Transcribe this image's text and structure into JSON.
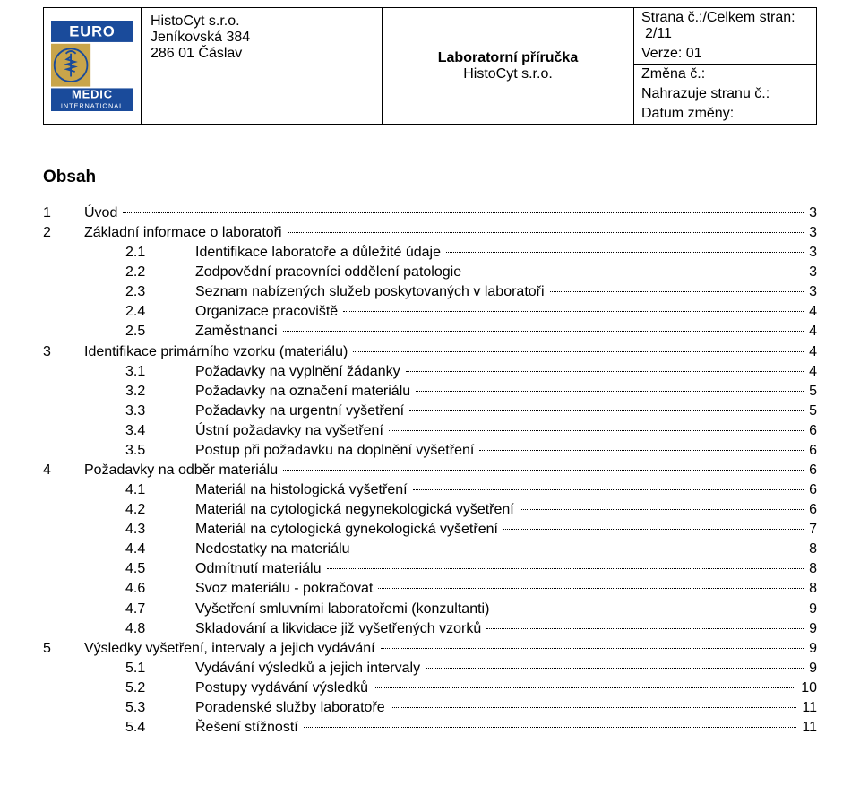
{
  "header": {
    "logo": {
      "top": "EURO",
      "bottom_line1": "MEDIC",
      "bottom_line2": "INTERNATIONAL",
      "blue": "#1a4b9b",
      "gold": "#c9a54a"
    },
    "company": {
      "name": "HistoCyt s.r.o.",
      "addr1": "Jeníkovská 384",
      "addr2": "286 01 Čáslav"
    },
    "title": {
      "line1": "Laboratorní příručka",
      "line2": "HistoCyt s.r.o."
    },
    "meta": {
      "page_label": "Strana č.:/Celkem stran:",
      "page_value": "2/11",
      "version": "Verze: 01",
      "change": "Změna č.:",
      "replaces": "Nahrazuje stranu č.:",
      "date": "Datum změny:"
    }
  },
  "obsah": "Obsah",
  "toc": [
    {
      "lvl": 1,
      "num": "1",
      "txt": "Úvod",
      "pg": "3"
    },
    {
      "lvl": 1,
      "num": "2",
      "txt": "Základní informace o laboratoři",
      "pg": "3"
    },
    {
      "lvl": 2,
      "num": "2.1",
      "txt": "Identifikace laboratoře a důležité údaje",
      "pg": "3",
      "sp": true
    },
    {
      "lvl": 2,
      "num": "2.2",
      "txt": "Zodpovědní pracovníci oddělení patologie",
      "pg": "3",
      "sp": true
    },
    {
      "lvl": 2,
      "num": "2.3",
      "txt": "Seznam nabízených služeb poskytovaných v laboratoři",
      "pg": "3",
      "sp": true
    },
    {
      "lvl": 2,
      "num": "2.4",
      "txt": "Organizace pracoviště",
      "pg": "4",
      "sp": true
    },
    {
      "lvl": 2,
      "num": "2.5",
      "txt": "Zaměstnanci",
      "pg": "4",
      "sp": true
    },
    {
      "lvl": 1,
      "num": "3",
      "txt": "Identifikace primárního vzorku (materiálu)",
      "pg": "4"
    },
    {
      "lvl": 2,
      "num": "3.1",
      "txt": "Požadavky na vyplnění žádanky",
      "pg": "4",
      "sp": true
    },
    {
      "lvl": 2,
      "num": "3.2",
      "txt": "Požadavky na označení materiálu",
      "pg": "5",
      "sp": true
    },
    {
      "lvl": 2,
      "num": "3.3",
      "txt": "Požadavky na urgentní vyšetření",
      "pg": "5",
      "sp": true
    },
    {
      "lvl": 2,
      "num": "3.4",
      "txt": "Ústní požadavky na vyšetření",
      "pg": "6",
      "sp": true
    },
    {
      "lvl": 2,
      "num": "3.5",
      "txt": "Postup při požadavku na doplnění vyšetření",
      "pg": "6",
      "sp": true
    },
    {
      "lvl": 1,
      "num": "4",
      "txt": "Požadavky na odběr materiálu",
      "pg": "6"
    },
    {
      "lvl": 2,
      "num": "4.1",
      "txt": "Materiál na histologická vyšetření",
      "pg": "6",
      "sp": true
    },
    {
      "lvl": 2,
      "num": "4.2",
      "txt": "Materiál na cytologická negynekologická vyšetření",
      "pg": "6",
      "sp": true
    },
    {
      "lvl": 2,
      "num": "4.3",
      "txt": "Materiál na cytologická gynekologická vyšetření",
      "pg": "7",
      "sp": true
    },
    {
      "lvl": 2,
      "num": "4.4",
      "txt": "Nedostatky na materiálu",
      "pg": "8",
      "sp": true
    },
    {
      "lvl": 2,
      "num": "4.5",
      "txt": "Odmítnutí materiálu",
      "pg": "8",
      "sp": true
    },
    {
      "lvl": 2,
      "num": "4.6",
      "txt": "Svoz materiálu  - pokračovat",
      "pg": "8",
      "sp": true
    },
    {
      "lvl": 2,
      "num": "4.7",
      "txt": "Vyšetření smluvními laboratořemi (konzultanti)",
      "pg": "9",
      "sp": true
    },
    {
      "lvl": 2,
      "num": "4.8",
      "txt": "Skladování a likvidace již vyšetřených vzorků",
      "pg": "9",
      "sp": true
    },
    {
      "lvl": 1,
      "num": "5",
      "txt": "Výsledky vyšetření, intervaly a jejich vydávání",
      "pg": "9"
    },
    {
      "lvl": 2,
      "num": "5.1",
      "txt": "Vydávání výsledků a jejich intervaly",
      "pg": "9",
      "sp": true
    },
    {
      "lvl": 2,
      "num": "5.2",
      "txt": "Postupy vydávání výsledků",
      "pg": "10",
      "sp": true
    },
    {
      "lvl": 2,
      "num": "5.3",
      "txt": "Poradenské služby laboratoře",
      "pg": "11",
      "sp": true
    },
    {
      "lvl": 2,
      "num": "5.4",
      "txt": "Řešení stížností",
      "pg": "11",
      "sp": true
    }
  ]
}
